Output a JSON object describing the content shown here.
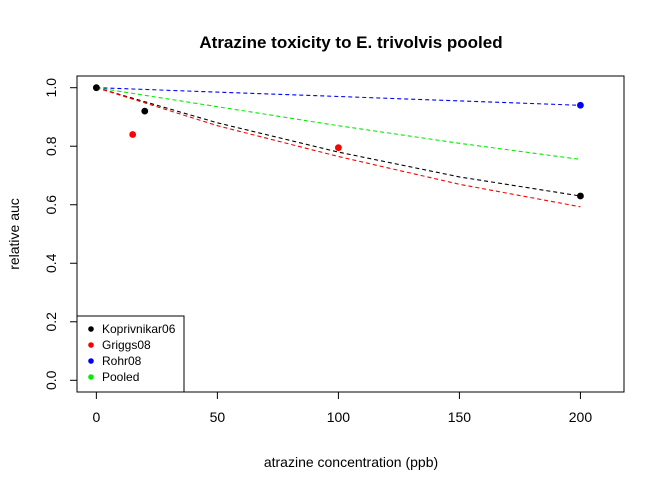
{
  "chart_data": {
    "type": "scatter",
    "title": "Atrazine toxicity to E. trivolvis pooled",
    "xlabel": "atrazine concentration (ppb)",
    "ylabel": "relative auc",
    "xlim": [
      -8,
      218
    ],
    "ylim": [
      -0.04,
      1.04
    ],
    "xticks": [
      0,
      50,
      100,
      150,
      200
    ],
    "yticks": [
      0.0,
      0.2,
      0.4,
      0.6,
      0.8,
      1.0
    ],
    "xtick_labels": [
      "0",
      "50",
      "100",
      "150",
      "200"
    ],
    "ytick_labels": [
      "0.0",
      "0.2",
      "0.4",
      "0.6",
      "0.8",
      "1.0"
    ],
    "legend_position": "bottom-left",
    "series": [
      {
        "name": "Koprivnikar06",
        "color": "#000000",
        "points": [
          [
            0,
            1.0
          ],
          [
            20,
            0.92
          ],
          [
            200,
            0.63
          ]
        ],
        "fit": [
          [
            0,
            1.0
          ],
          [
            50,
            0.88
          ],
          [
            100,
            0.78
          ],
          [
            150,
            0.695
          ],
          [
            200,
            0.63
          ]
        ]
      },
      {
        "name": "Griggs08",
        "color": "#ff0000",
        "points": [
          [
            15,
            0.84
          ],
          [
            100,
            0.795
          ]
        ],
        "fit": [
          [
            0,
            1.0
          ],
          [
            50,
            0.87
          ],
          [
            100,
            0.765
          ],
          [
            150,
            0.67
          ],
          [
            200,
            0.593
          ]
        ]
      },
      {
        "name": "Rohr08",
        "color": "#0000ff",
        "points": [
          [
            200,
            0.94
          ]
        ],
        "fit": [
          [
            0,
            1.0
          ],
          [
            50,
            0.985
          ],
          [
            100,
            0.97
          ],
          [
            150,
            0.955
          ],
          [
            200,
            0.94
          ]
        ]
      },
      {
        "name": "Pooled",
        "color": "#00ee00",
        "points": [],
        "fit": [
          [
            0,
            1.0
          ],
          [
            50,
            0.935
          ],
          [
            100,
            0.87
          ],
          [
            150,
            0.81
          ],
          [
            200,
            0.755
          ]
        ]
      }
    ]
  }
}
